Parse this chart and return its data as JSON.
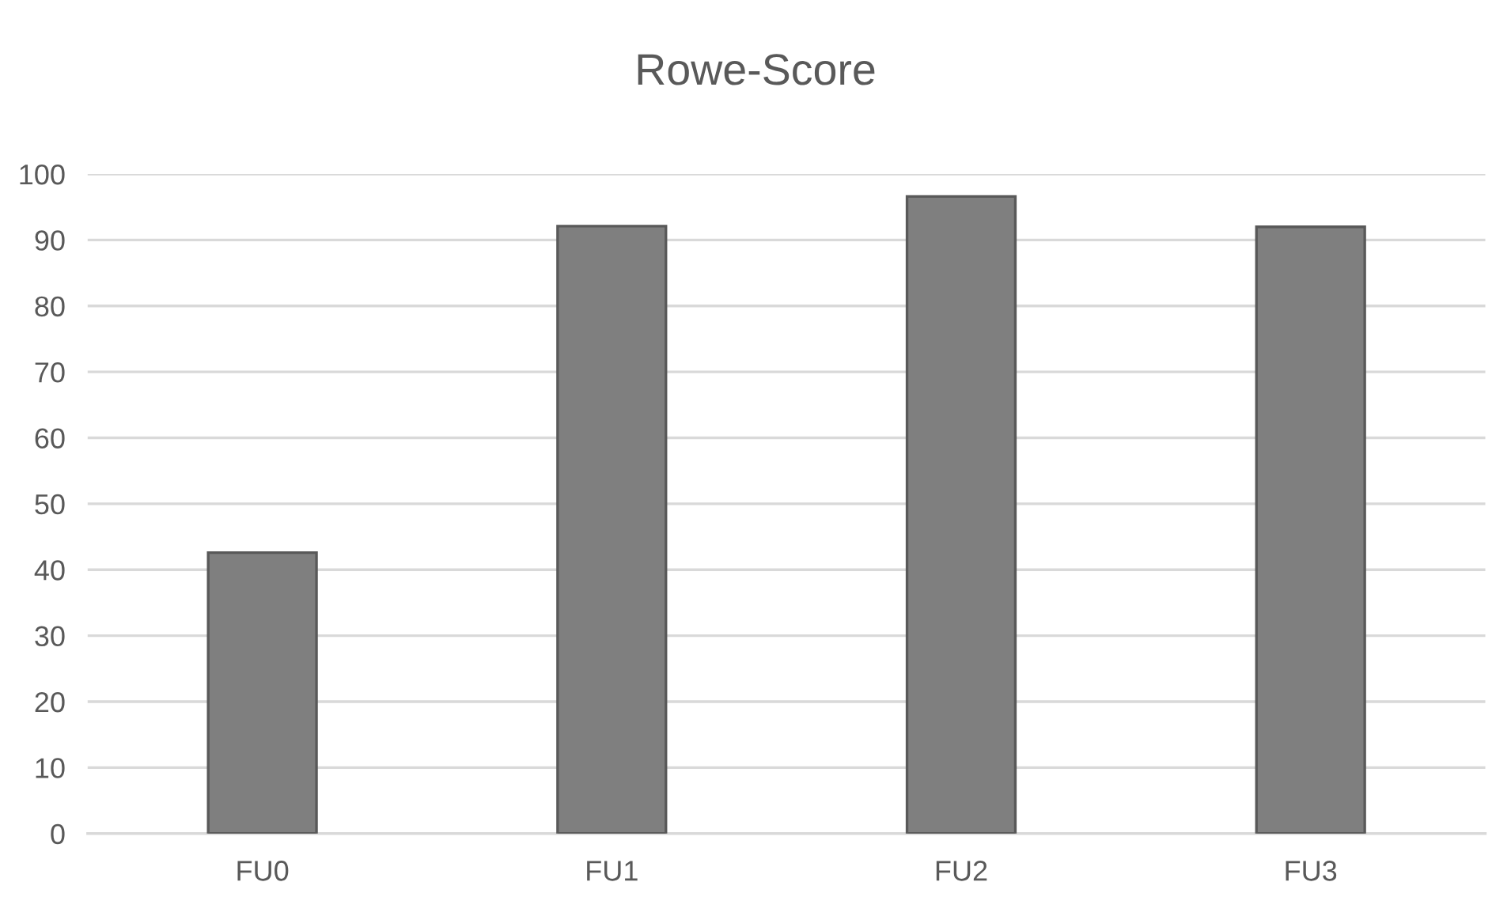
{
  "chart_data": {
    "type": "bar",
    "title": "Rowe-Score",
    "categories": [
      "FU0",
      "FU1",
      "FU2",
      "FU3"
    ],
    "values": [
      42.6,
      92.1,
      96.6,
      92.0
    ],
    "color": "#7f7f7f",
    "ylim": [
      0,
      100
    ],
    "yticks": [
      0,
      10,
      20,
      30,
      40,
      50,
      60,
      70,
      80,
      90,
      100
    ],
    "grid": "y"
  }
}
